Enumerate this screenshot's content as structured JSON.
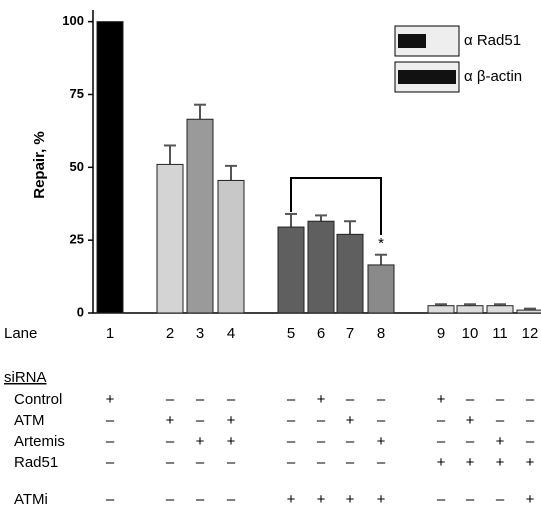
{
  "chart_data": {
    "type": "bar",
    "y_label": "Repair, %",
    "x_label": "Lane",
    "categories": [
      "1",
      "2",
      "3",
      "4",
      "5",
      "6",
      "7",
      "8",
      "9",
      "10",
      "11",
      "12"
    ],
    "values": [
      100,
      51,
      66.5,
      45.5,
      29.5,
      31.5,
      27,
      16.5,
      2.5,
      2.5,
      2.5,
      1
    ],
    "errors": [
      0,
      6.5,
      5,
      5,
      4.5,
      2,
      4.5,
      3.5,
      0.5,
      0.5,
      0.5,
      0.5
    ],
    "colors": [
      "#000000",
      "#d4d4d4",
      "#9a9a9a",
      "#c8c8c8",
      "#5f5f5f",
      "#5f5f5f",
      "#5f5f5f",
      "#8a8a8a",
      "#dcdcdc",
      "#dcdcdc",
      "#dcdcdc",
      "#dcdcdc"
    ],
    "ylim": [
      0,
      104
    ],
    "yticks": [
      0,
      25,
      50,
      75,
      100
    ],
    "annotation": "*",
    "inset_labels": [
      "α Rad51",
      "α β-actin"
    ]
  },
  "table": {
    "header": "siRNA",
    "rows": [
      {
        "label": "Control",
        "cells": [
          "+",
          "–",
          "–",
          "–",
          "–",
          "+",
          "–",
          "–",
          "+",
          "–",
          "–",
          "–"
        ]
      },
      {
        "label": "ATM",
        "cells": [
          "–",
          "+",
          "–",
          "+",
          "–",
          "–",
          "+",
          "–",
          "–",
          "+",
          "–",
          "–"
        ]
      },
      {
        "label": "Artemis",
        "cells": [
          "–",
          "–",
          "+",
          "+",
          "–",
          "–",
          "–",
          "+",
          "–",
          "–",
          "+",
          "–"
        ]
      },
      {
        "label": "Rad51",
        "cells": [
          "–",
          "–",
          "–",
          "–",
          "–",
          "–",
          "–",
          "–",
          "+",
          "+",
          "+",
          "+"
        ]
      },
      {
        "label": "ATMi",
        "cells": [
          "–",
          "–",
          "–",
          "–",
          "+",
          "+",
          "+",
          "+",
          "–",
          "–",
          "–",
          "+"
        ]
      }
    ]
  }
}
